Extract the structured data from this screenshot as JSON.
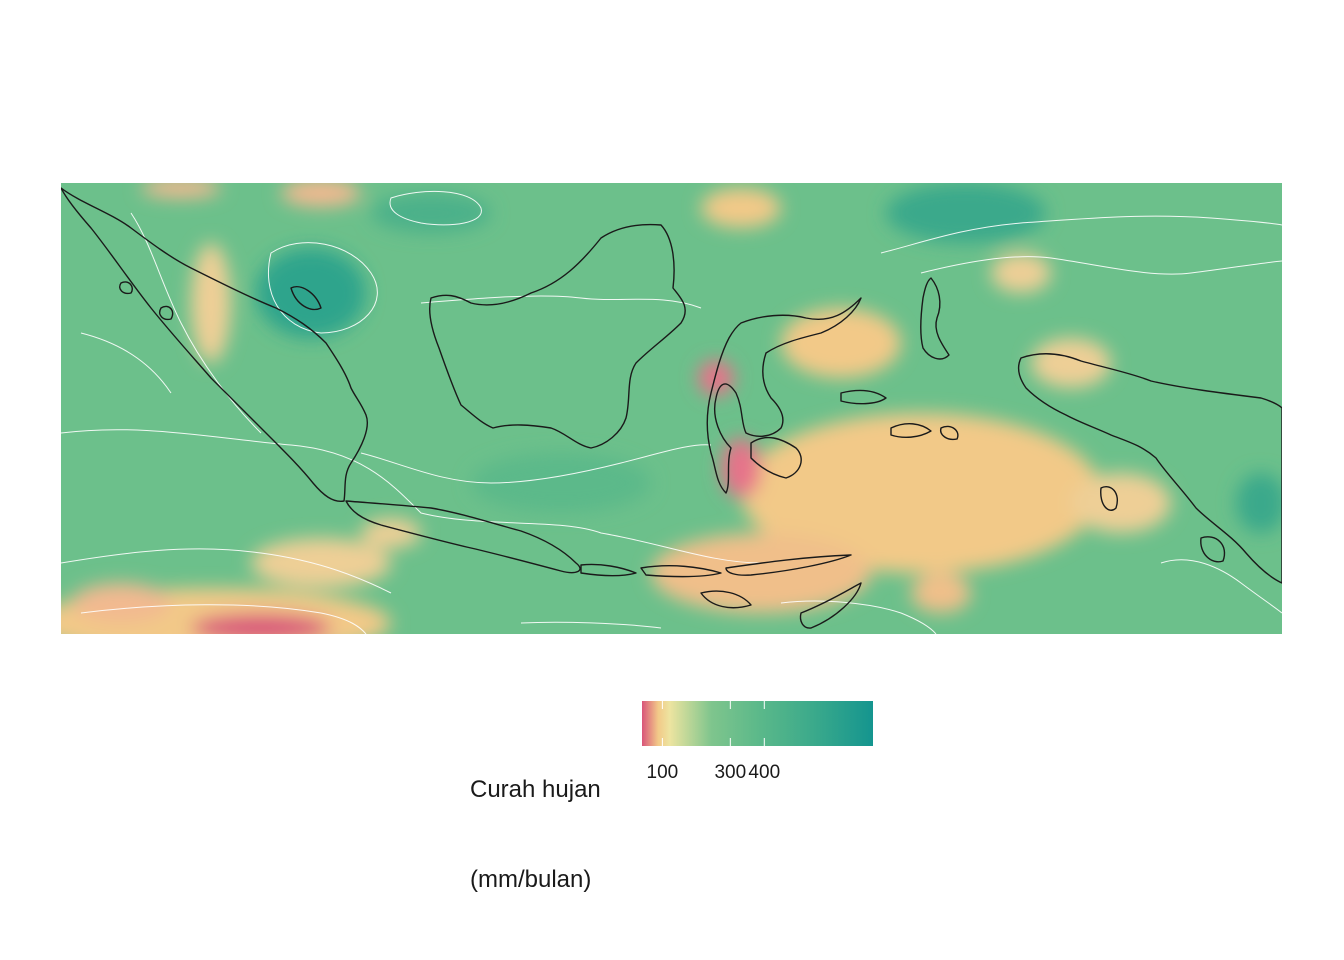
{
  "map": {
    "region": "Indonesia",
    "colors": {
      "dry": "#d9557a",
      "mid_dry": "#f2c988",
      "neutral": "#ede4a0",
      "moist": "#6cc08b",
      "wet": "#14958f",
      "contour_line": "#ffffff",
      "coastline": "#1a1a1a"
    }
  },
  "legend": {
    "title_line1": "Curah hujan",
    "title_line2": "(mm/bulan)",
    "ticks": [
      {
        "label": "100",
        "value": 100
      },
      {
        "label": "300",
        "value": 300
      },
      {
        "label": "400",
        "value": 400
      }
    ],
    "scale_min": 40,
    "scale_max": 720,
    "gradient": [
      "#d9557a",
      "#f2c988",
      "#ede4a0",
      "#7fc58d",
      "#5cb98a",
      "#3aa98b",
      "#14958f"
    ]
  }
}
